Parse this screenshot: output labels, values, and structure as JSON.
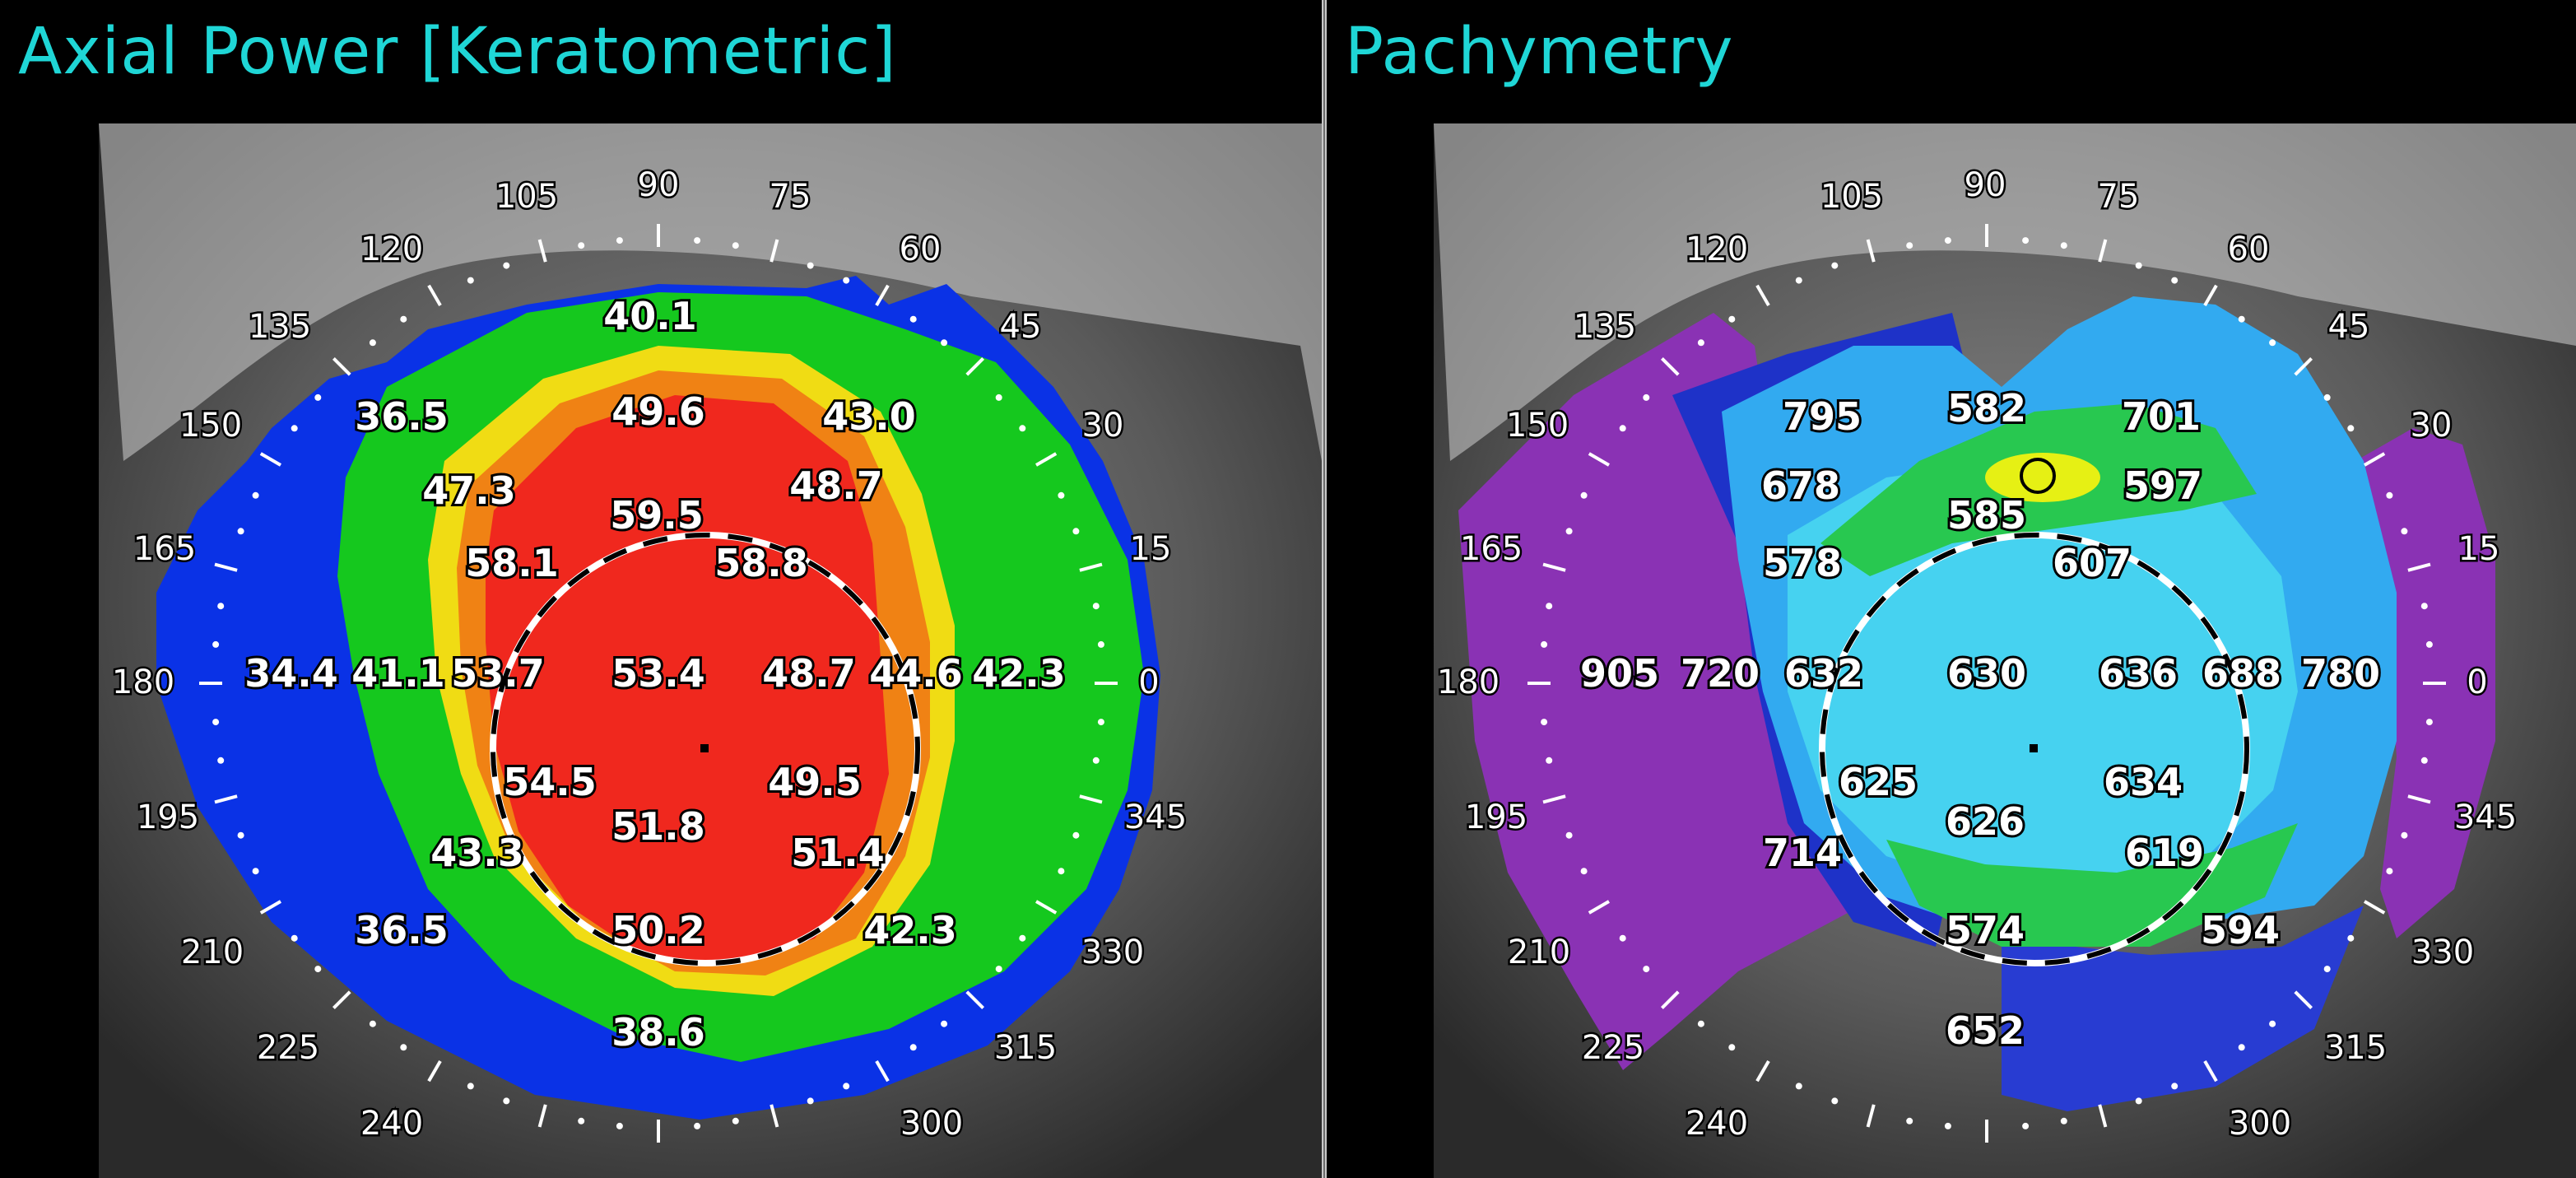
{
  "panels": [
    {
      "id": "axial",
      "title": "Axial Power [Keratometric]",
      "values": [
        "40.1",
        "36.5",
        "49.6",
        "43.0",
        "47.3",
        "48.7",
        "59.5",
        "58.1",
        "58.8",
        "34.4",
        "41.1",
        "53.7",
        "53.4",
        "48.7",
        "44.6",
        "42.3",
        "54.5",
        "49.5",
        "51.8",
        "43.3",
        "51.4",
        "36.5",
        "50.2",
        "42.3",
        "38.6"
      ]
    },
    {
      "id": "pachy",
      "title": "Pachymetry",
      "values": [
        "795",
        "582",
        "701",
        "678",
        "597",
        "585",
        "578",
        "607",
        "905",
        "720",
        "632",
        "630",
        "636",
        "688",
        "780",
        "625",
        "634",
        "626",
        "714",
        "619",
        "574",
        "594",
        "652"
      ]
    }
  ],
  "angles": [
    "105",
    "90",
    "75",
    "120",
    "60",
    "135",
    "45",
    "150",
    "30",
    "165",
    "15",
    "180",
    "0",
    "195",
    "345",
    "210",
    "330",
    "225",
    "315",
    "240",
    "300"
  ],
  "colors": {
    "title": "#1fd6d6",
    "background": "#000000",
    "divider": "#c8c8c8"
  }
}
